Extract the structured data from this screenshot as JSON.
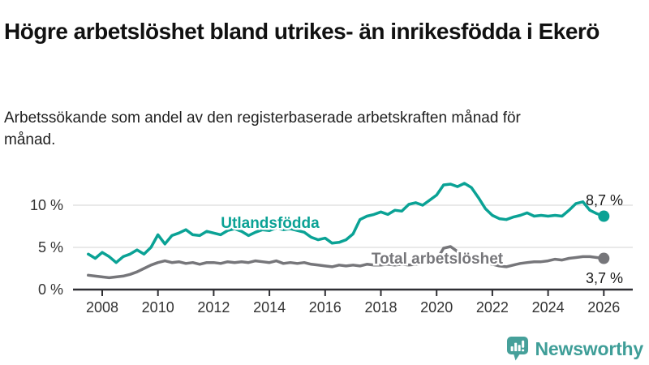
{
  "header": {
    "title": "Högre arbetslöshet bland utrikes- än inrikesfödda i Ekerö",
    "subtitle": "Arbetssökande som andel av den registerbaserade arbetskraften månad för månad."
  },
  "chart_data": {
    "type": "line",
    "title": "Högre arbetslöshet bland utrikes- än inrikesfödda i Ekerö",
    "xlabel": "",
    "ylabel": "",
    "x_unit": "decimal_year",
    "xlim": [
      2007.3,
      2026.9
    ],
    "ylim": [
      0,
      13.5
    ],
    "grid": "horizontal",
    "x_ticks": [
      2008,
      2010,
      2012,
      2014,
      2016,
      2018,
      2020,
      2022,
      2024,
      2026
    ],
    "y_ticks": [
      {
        "value": 0,
        "label": "0 %"
      },
      {
        "value": 5,
        "label": "5 %"
      },
      {
        "value": 10,
        "label": "10 %"
      }
    ],
    "x": [
      2007.5,
      2007.75,
      2008,
      2008.25,
      2008.5,
      2008.75,
      2009,
      2009.25,
      2009.5,
      2009.75,
      2010,
      2010.25,
      2010.5,
      2010.75,
      2011,
      2011.25,
      2011.5,
      2011.75,
      2012,
      2012.25,
      2012.5,
      2012.75,
      2013,
      2013.25,
      2013.5,
      2013.75,
      2014,
      2014.25,
      2014.5,
      2014.75,
      2015,
      2015.25,
      2015.5,
      2015.75,
      2016,
      2016.25,
      2016.5,
      2016.75,
      2017,
      2017.25,
      2017.5,
      2017.75,
      2018,
      2018.25,
      2018.5,
      2018.75,
      2019,
      2019.25,
      2019.5,
      2019.75,
      2020,
      2020.25,
      2020.5,
      2020.75,
      2021,
      2021.25,
      2021.5,
      2021.75,
      2022,
      2022.25,
      2022.5,
      2022.75,
      2023,
      2023.25,
      2023.5,
      2023.75,
      2024,
      2024.25,
      2024.5,
      2024.75,
      2025,
      2025.25,
      2025.5,
      2025.75,
      2026
    ],
    "series": [
      {
        "name": "Utlandsfödda",
        "color": "#0aa295",
        "end_label": "8,7 %",
        "values": [
          4.2,
          3.7,
          4.4,
          3.9,
          3.2,
          3.9,
          4.2,
          4.7,
          4.2,
          5.0,
          6.5,
          5.4,
          6.4,
          6.7,
          7.1,
          6.5,
          6.4,
          6.9,
          6.7,
          6.5,
          7.0,
          7.2,
          6.9,
          6.4,
          6.8,
          7.1,
          7.0,
          7.3,
          7.1,
          7.2,
          7.0,
          6.8,
          6.2,
          5.9,
          6.1,
          5.5,
          5.6,
          5.9,
          6.6,
          8.3,
          8.7,
          8.9,
          9.2,
          8.9,
          9.4,
          9.3,
          10.1,
          10.3,
          10.0,
          10.6,
          11.2,
          12.4,
          12.5,
          12.2,
          12.6,
          12.1,
          10.9,
          9.6,
          8.8,
          8.4,
          8.3,
          8.6,
          8.8,
          9.1,
          8.7,
          8.8,
          8.7,
          8.8,
          8.7,
          9.4,
          10.2,
          10.4,
          9.4,
          9.0,
          8.7
        ]
      },
      {
        "name": "Total arbetslöshet",
        "color": "#76767a",
        "end_label": "3,7 %",
        "values": [
          1.7,
          1.6,
          1.5,
          1.4,
          1.5,
          1.6,
          1.8,
          2.1,
          2.5,
          2.9,
          3.2,
          3.4,
          3.2,
          3.3,
          3.1,
          3.2,
          3.0,
          3.2,
          3.2,
          3.1,
          3.3,
          3.2,
          3.3,
          3.2,
          3.4,
          3.3,
          3.2,
          3.4,
          3.1,
          3.2,
          3.1,
          3.2,
          3.0,
          2.9,
          2.8,
          2.7,
          2.9,
          2.8,
          2.9,
          2.8,
          3.0,
          2.9,
          2.9,
          3.0,
          2.9,
          3.0,
          2.9,
          3.0,
          3.1,
          3.2,
          3.5,
          4.9,
          5.1,
          4.5,
          4.0,
          3.6,
          3.3,
          3.1,
          3.0,
          2.8,
          2.7,
          2.9,
          3.1,
          3.2,
          3.3,
          3.3,
          3.4,
          3.6,
          3.5,
          3.7,
          3.8,
          3.9,
          3.9,
          3.8,
          3.7
        ]
      }
    ],
    "legend_position": "inline-labels"
  },
  "colors": {
    "gridline": "#e2e2e2",
    "axis": "#2f2f33",
    "tick_label": "#333333",
    "end_value_label": "#1a1a1a",
    "brand_teal": "#3f9e98"
  },
  "branding": {
    "logo_text": "Newsworthy"
  }
}
